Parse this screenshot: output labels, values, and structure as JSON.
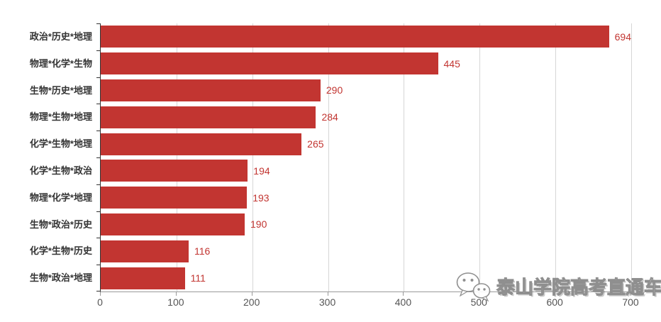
{
  "chart_data": {
    "type": "bar",
    "orientation": "horizontal",
    "title": "",
    "xlabel": "",
    "ylabel": "",
    "categories": [
      "政治*历史*地理",
      "物理*化学*生物",
      "生物*历史*地理",
      "物理*生物*地理",
      "化学*生物*地理",
      "化学*生物*政治",
      "物理*化学*地理",
      "生物*政治*历史",
      "化学*生物*历史",
      "生物*政治*地理"
    ],
    "values": [
      694,
      445,
      290,
      284,
      265,
      194,
      193,
      190,
      116,
      111
    ],
    "xlim": [
      0,
      700
    ],
    "x_ticks": [
      0,
      100,
      200,
      300,
      400,
      500,
      600,
      700
    ],
    "grid": true,
    "legend": "none",
    "bar_color": "#c23531",
    "value_label_color": "#c23531",
    "gridline_color": "#d6d6d6",
    "axis_label_color": "#555",
    "category_label_color": "#333"
  },
  "watermark": {
    "text": "泰山学院高考直通车",
    "icon": "wechat-logo-icon"
  }
}
